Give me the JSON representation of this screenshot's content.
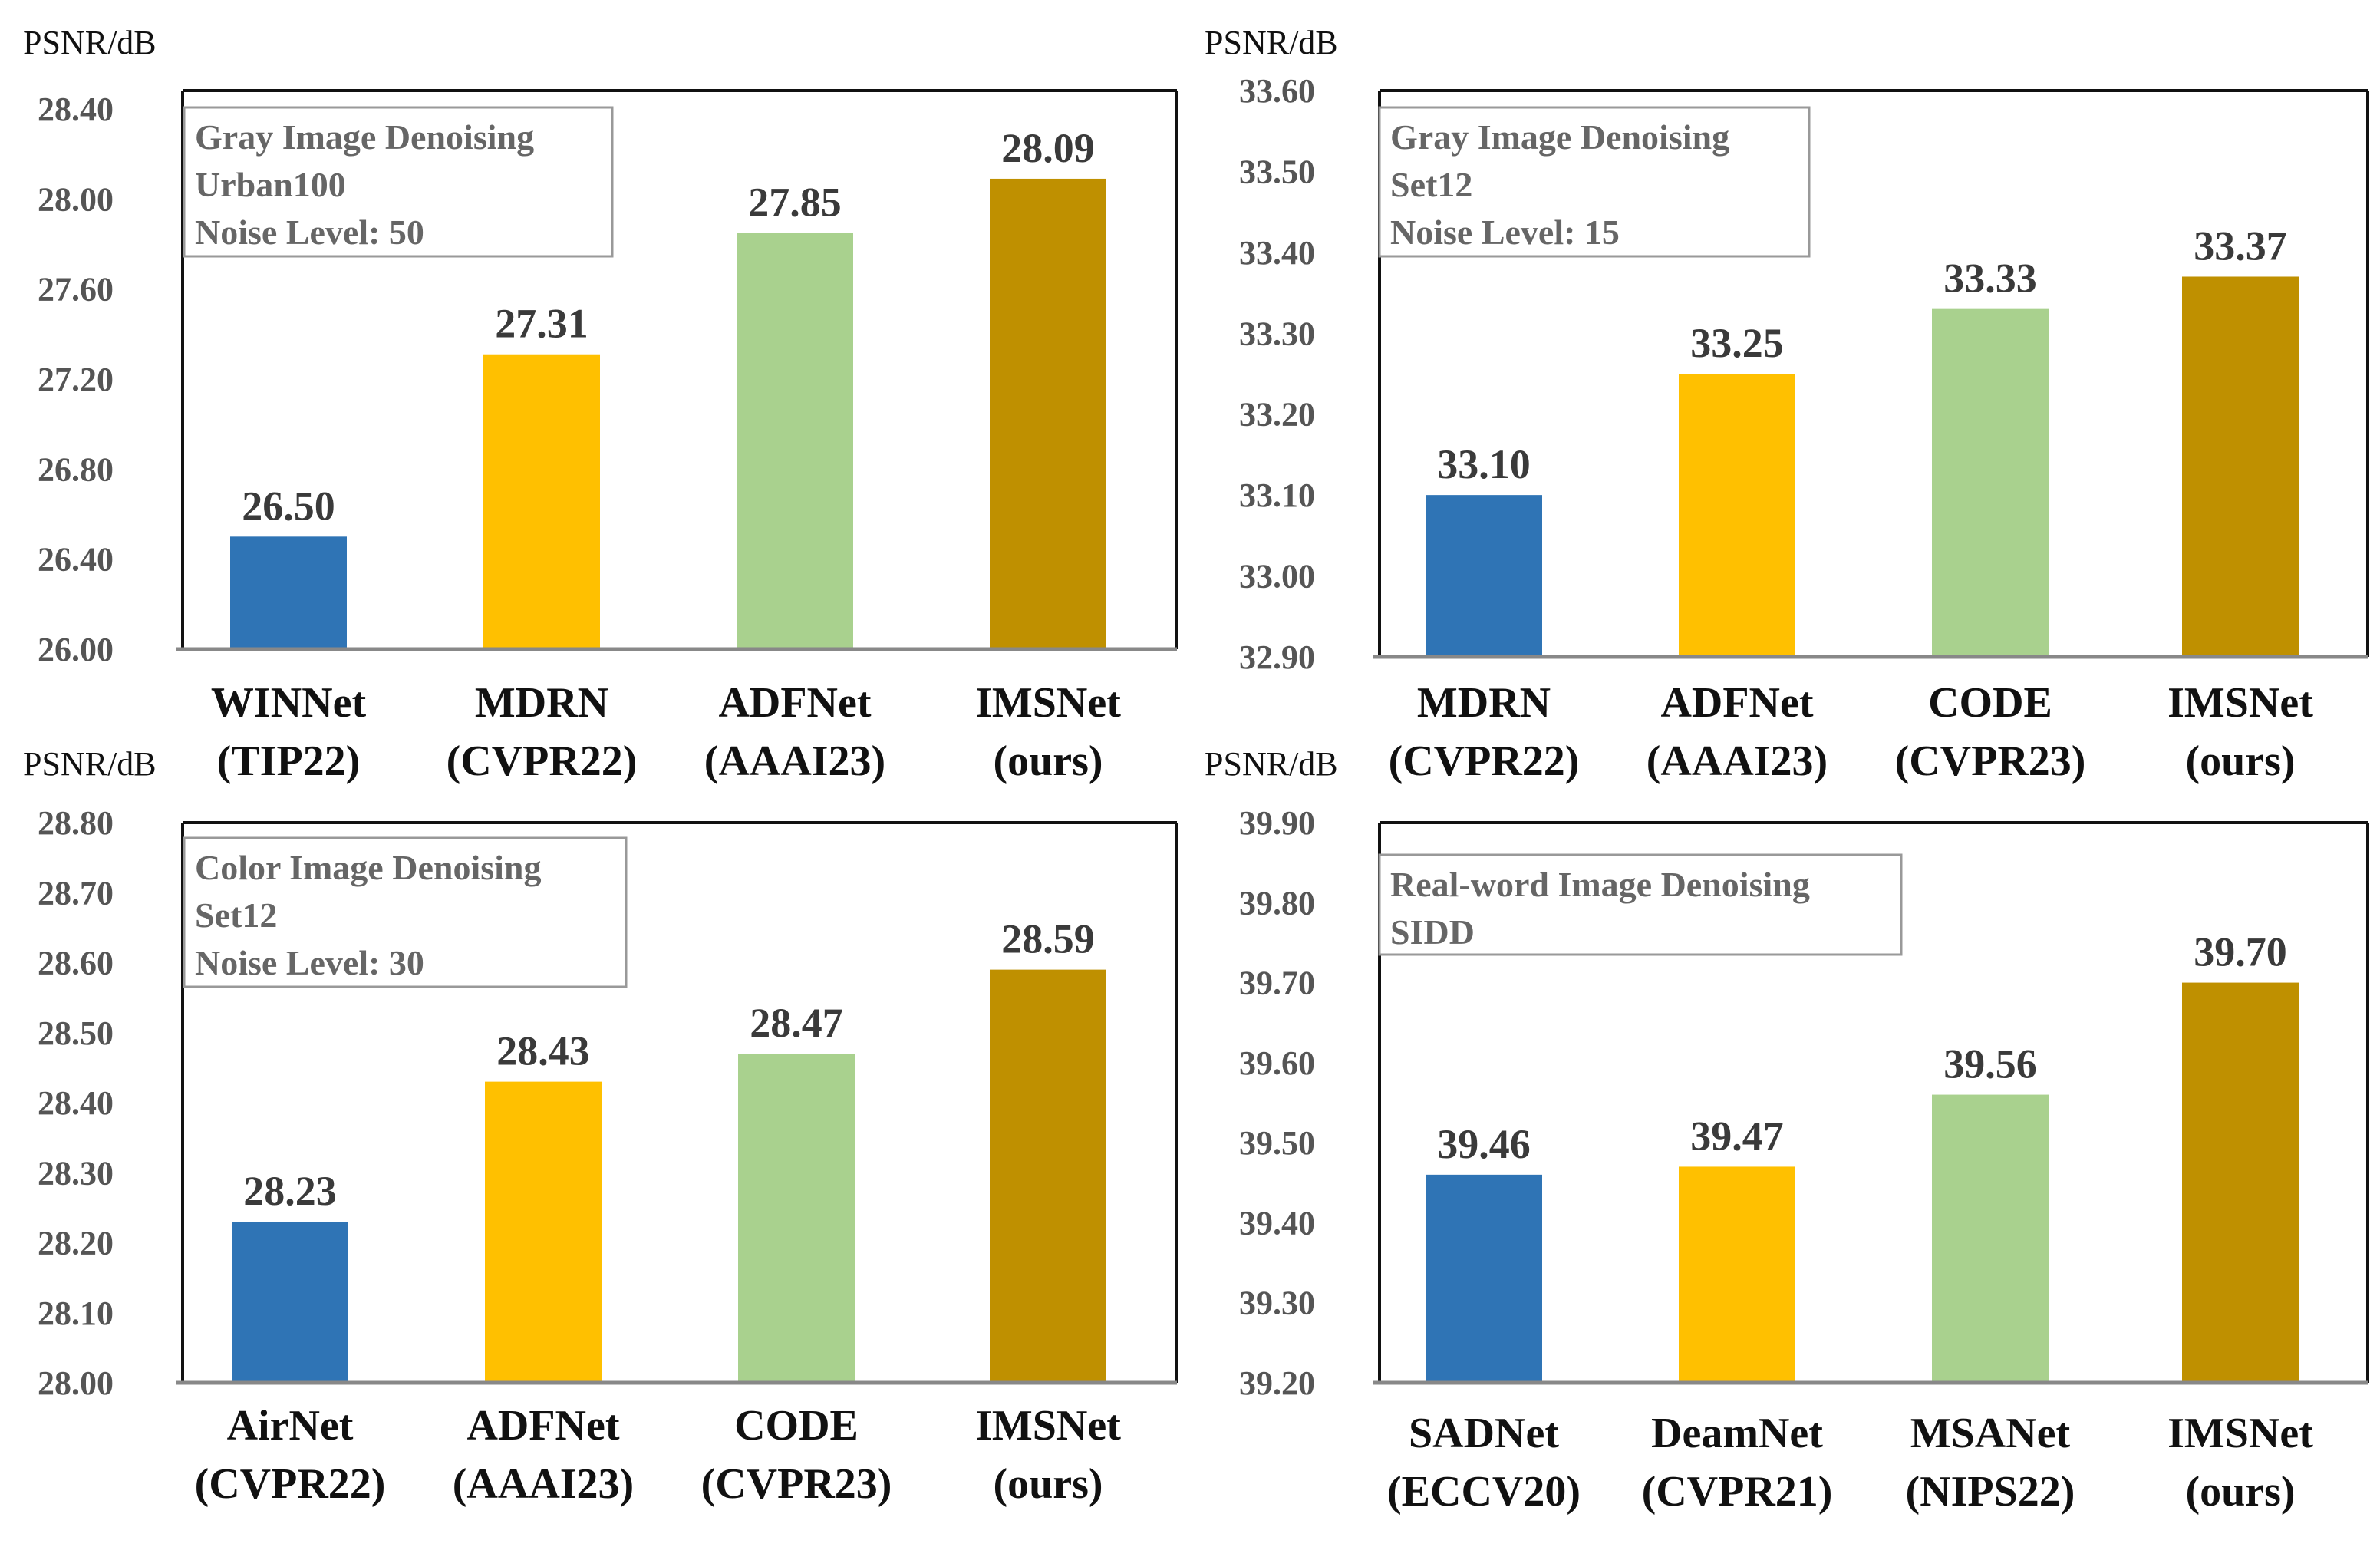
{
  "colors": {
    "blue": "#2f74b5",
    "yellow": "#ffc000",
    "green": "#a9d18e",
    "gold": "#bf9000",
    "frame": "#111111",
    "legend_border": "#999999"
  },
  "chart_data": [
    {
      "type": "bar",
      "ylabel": "PSNR/dB",
      "ylim": [
        26.0,
        28.4
      ],
      "yticks": [
        "26.00",
        "26.40",
        "26.80",
        "27.20",
        "27.60",
        "28.00",
        "28.40"
      ],
      "legend": [
        "Gray Image Denoising",
        "Urban100",
        "Noise Level:  50"
      ],
      "categories": [
        {
          "name": "WINNet",
          "venue": "(TIP22)"
        },
        {
          "name": "MDRN",
          "venue": "(CVPR22)"
        },
        {
          "name": "ADFNet",
          "venue": "(AAAI23)"
        },
        {
          "name": "IMSNet",
          "venue": "(ours)"
        }
      ],
      "values": [
        26.5,
        27.31,
        27.85,
        28.09
      ],
      "value_labels": [
        "26.50",
        "27.31",
        "27.85",
        "28.09"
      ],
      "bar_colors": [
        "#2f74b5",
        "#ffc000",
        "#a9d18e",
        "#bf9000"
      ]
    },
    {
      "type": "bar",
      "ylabel": "PSNR/dB",
      "ylim": [
        32.9,
        33.6
      ],
      "yticks": [
        "32.90",
        "33.00",
        "33.10",
        "33.20",
        "33.30",
        "33.40",
        "33.50",
        "33.60"
      ],
      "legend": [
        "Gray Image Denoising",
        "Set12",
        "Noise Level:  15"
      ],
      "categories": [
        {
          "name": "MDRN",
          "venue": "(CVPR22)"
        },
        {
          "name": "ADFNet",
          "venue": "(AAAI23)"
        },
        {
          "name": "CODE",
          "venue": "(CVPR23)"
        },
        {
          "name": "IMSNet",
          "venue": "(ours)"
        }
      ],
      "values": [
        33.1,
        33.25,
        33.33,
        33.37
      ],
      "value_labels": [
        "33.10",
        "33.25",
        "33.33",
        "33.37"
      ],
      "bar_colors": [
        "#2f74b5",
        "#ffc000",
        "#a9d18e",
        "#bf9000"
      ]
    },
    {
      "type": "bar",
      "ylabel": "PSNR/dB",
      "ylim": [
        28.0,
        28.8
      ],
      "yticks": [
        "28.00",
        "28.10",
        "28.20",
        "28.30",
        "28.40",
        "28.50",
        "28.60",
        "28.70",
        "28.80"
      ],
      "legend": [
        "Color  Image Denoising",
        "Set12",
        "Noise Level:  30"
      ],
      "categories": [
        {
          "name": "AirNet",
          "venue": "(CVPR22)"
        },
        {
          "name": "ADFNet",
          "venue": "(AAAI23)"
        },
        {
          "name": "CODE",
          "venue": "(CVPR23)"
        },
        {
          "name": "IMSNet",
          "venue": "(ours)"
        }
      ],
      "values": [
        28.23,
        28.43,
        28.47,
        28.59
      ],
      "value_labels": [
        "28.23",
        "28.43",
        "28.47",
        "28.59"
      ],
      "bar_colors": [
        "#2f74b5",
        "#ffc000",
        "#a9d18e",
        "#bf9000"
      ]
    },
    {
      "type": "bar",
      "ylabel": "PSNR/dB",
      "ylim": [
        39.2,
        39.9
      ],
      "yticks": [
        "39.20",
        "39.30",
        "39.40",
        "39.50",
        "39.60",
        "39.70",
        "39.80",
        "39.90"
      ],
      "legend": [
        "Real-word Image Denoising",
        "SIDD"
      ],
      "categories": [
        {
          "name": "SADNet",
          "venue": "(ECCV20)"
        },
        {
          "name": "DeamNet",
          "venue": "(CVPR21)"
        },
        {
          "name": "MSANet",
          "venue": "(NIPS22)"
        },
        {
          "name": "IMSNet",
          "venue": "(ours)"
        }
      ],
      "values": [
        39.46,
        39.47,
        39.56,
        39.7
      ],
      "value_labels": [
        "39.46",
        "39.47",
        "39.56",
        "39.70"
      ],
      "bar_colors": [
        "#2f74b5",
        "#ffc000",
        "#a9d18e",
        "#bf9000"
      ]
    }
  ]
}
